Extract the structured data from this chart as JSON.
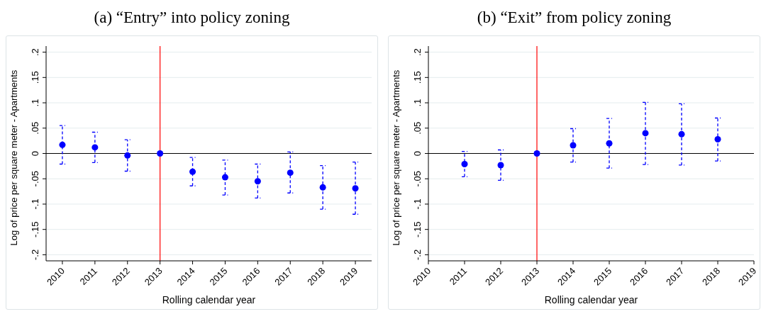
{
  "chart_data": [
    {
      "type": "scatter",
      "title": "(a) “Entry” into policy zoning",
      "xlabel": "Rolling calendar year",
      "ylabel": "Log of price per square meter - Apartments",
      "x": [
        2010,
        2011,
        2012,
        2013,
        2014,
        2015,
        2016,
        2017,
        2018,
        2019
      ],
      "series": [
        {
          "color": "#0000ff",
          "values": [
            0.017,
            0.012,
            -0.004,
            0,
            -0.036,
            -0.047,
            -0.055,
            -0.038,
            -0.067,
            -0.069
          ],
          "errors": [
            [
              -0.021,
              0.055
            ],
            [
              -0.018,
              0.042
            ],
            [
              -0.035,
              0.027
            ],
            null,
            [
              -0.064,
              -0.008
            ],
            [
              -0.082,
              -0.013
            ],
            [
              -0.088,
              -0.021
            ],
            [
              -0.078,
              0.003
            ],
            [
              -0.11,
              -0.024
            ],
            [
              -0.12,
              -0.017
            ]
          ]
        }
      ],
      "xlim": [
        2009.5,
        2019.5
      ],
      "xticks": [
        2010,
        2011,
        2012,
        2013,
        2014,
        2015,
        2016,
        2017,
        2018,
        2019
      ],
      "ylim": [
        -0.212,
        0.212
      ],
      "yticks": [
        {
          "value": -0.2,
          "label": "-.2"
        },
        {
          "value": -0.15,
          "label": "-.15"
        },
        {
          "value": -0.1,
          "label": "-.1"
        },
        {
          "value": -0.05,
          "label": "-.05"
        },
        0,
        {
          "value": 0.05,
          "label": ".05"
        },
        {
          "value": 0.1,
          "label": ".1"
        },
        {
          "value": 0.15,
          "label": ".15"
        },
        {
          "value": 0.2,
          "label": ".2"
        }
      ],
      "ref_lines": [
        {
          "axis": "x",
          "value": 2013,
          "color": "#ff0000"
        },
        {
          "axis": "y",
          "value": 0,
          "color": "#000000"
        }
      ],
      "grid": "y",
      "marker": "circle",
      "line_style": "dashed",
      "legend": false
    },
    {
      "type": "scatter",
      "title": "(b) “Exit” from policy zoning",
      "xlabel": "Rolling calendar year",
      "ylabel": "Log of price per square meter - Apartments",
      "x": [
        2011,
        2012,
        2013,
        2014,
        2015,
        2016,
        2017,
        2018
      ],
      "series": [
        {
          "color": "#0000ff",
          "values": [
            -0.021,
            -0.023,
            0,
            0.016,
            0.02,
            0.04,
            0.038,
            0.028
          ],
          "errors": [
            [
              -0.046,
              0.004
            ],
            [
              -0.053,
              0.007
            ],
            null,
            [
              -0.017,
              0.049
            ],
            [
              -0.029,
              0.069
            ],
            [
              -0.022,
              0.101
            ],
            [
              -0.023,
              0.098
            ],
            [
              -0.015,
              0.07
            ]
          ]
        }
      ],
      "xlim": [
        2010,
        2019
      ],
      "xticks": [
        2010,
        2011,
        2012,
        2013,
        2014,
        2015,
        2016,
        2017,
        2018,
        2019
      ],
      "ylim": [
        -0.212,
        0.212
      ],
      "yticks": [
        {
          "value": -0.2,
          "label": "-.2"
        },
        {
          "value": -0.15,
          "label": "-.15"
        },
        {
          "value": -0.1,
          "label": "-.1"
        },
        {
          "value": -0.05,
          "label": "-.05"
        },
        0,
        {
          "value": 0.05,
          "label": ".05"
        },
        {
          "value": 0.1,
          "label": ".1"
        },
        {
          "value": 0.15,
          "label": ".15"
        },
        {
          "value": 0.2,
          "label": ".2"
        }
      ],
      "ref_lines": [
        {
          "axis": "x",
          "value": 2013,
          "color": "#ff0000"
        },
        {
          "axis": "y",
          "value": 0,
          "color": "#000000"
        }
      ],
      "grid": "y",
      "marker": "circle",
      "line_style": "dashed",
      "legend": false
    }
  ]
}
